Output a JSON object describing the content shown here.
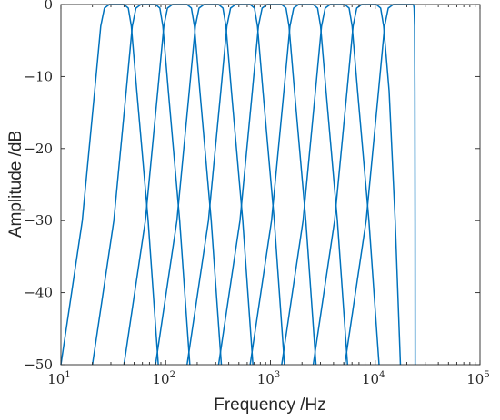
{
  "chart_data": {
    "type": "line",
    "xlabel": "Frequency /Hz",
    "ylabel": "Amplitude /dB",
    "xscale": "log",
    "xlim": [
      10,
      100000
    ],
    "ylim": [
      -50,
      0
    ],
    "grid": false,
    "line_color": "#0072BD",
    "x_ticks": [
      {
        "base": "10",
        "exp": "1",
        "value": 10
      },
      {
        "base": "10",
        "exp": "2",
        "value": 100
      },
      {
        "base": "10",
        "exp": "3",
        "value": 1000
      },
      {
        "base": "10",
        "exp": "4",
        "value": 10000
      },
      {
        "base": "10",
        "exp": "5",
        "value": 100000
      }
    ],
    "y_ticks": [
      {
        "label": "0",
        "value": 0
      },
      {
        "label": "−10",
        "value": -10
      },
      {
        "label": "−20",
        "value": -20
      },
      {
        "label": "−30",
        "value": -30
      },
      {
        "label": "−40",
        "value": -40
      },
      {
        "label": "−50",
        "value": -50
      }
    ],
    "series": [
      {
        "points": [
          [
            10,
            -50
          ],
          [
            16,
            -30
          ],
          [
            21,
            -12
          ],
          [
            24,
            -3
          ],
          [
            26,
            -0.5
          ],
          [
            29,
            0
          ],
          [
            40,
            0
          ],
          [
            44,
            -0.5
          ],
          [
            47,
            -3
          ],
          [
            53,
            -12
          ],
          [
            68,
            -30
          ],
          [
            85,
            -50
          ]
        ]
      },
      {
        "points": [
          [
            20,
            -50
          ],
          [
            32,
            -30
          ],
          [
            42,
            -12
          ],
          [
            48,
            -3
          ],
          [
            52,
            -0.5
          ],
          [
            58,
            0
          ],
          [
            80,
            0
          ],
          [
            88,
            -0.5
          ],
          [
            94,
            -3
          ],
          [
            106,
            -12
          ],
          [
            136,
            -30
          ],
          [
            170,
            -50
          ]
        ]
      },
      {
        "points": [
          [
            40,
            -50
          ],
          [
            64,
            -30
          ],
          [
            84,
            -12
          ],
          [
            96,
            -3
          ],
          [
            104,
            -0.5
          ],
          [
            116,
            0
          ],
          [
            160,
            0
          ],
          [
            176,
            -0.5
          ],
          [
            188,
            -3
          ],
          [
            212,
            -12
          ],
          [
            272,
            -30
          ],
          [
            340,
            -50
          ]
        ]
      },
      {
        "points": [
          [
            80,
            -50
          ],
          [
            128,
            -30
          ],
          [
            168,
            -12
          ],
          [
            192,
            -3
          ],
          [
            208,
            -0.5
          ],
          [
            232,
            0
          ],
          [
            320,
            0
          ],
          [
            352,
            -0.5
          ],
          [
            376,
            -3
          ],
          [
            424,
            -12
          ],
          [
            544,
            -30
          ],
          [
            680,
            -50
          ]
        ]
      },
      {
        "points": [
          [
            160,
            -50
          ],
          [
            256,
            -30
          ],
          [
            336,
            -12
          ],
          [
            384,
            -3
          ],
          [
            416,
            -0.5
          ],
          [
            464,
            0
          ],
          [
            640,
            0
          ],
          [
            704,
            -0.5
          ],
          [
            752,
            -3
          ],
          [
            848,
            -12
          ],
          [
            1088,
            -30
          ],
          [
            1360,
            -50
          ]
        ]
      },
      {
        "points": [
          [
            320,
            -50
          ],
          [
            512,
            -30
          ],
          [
            672,
            -12
          ],
          [
            768,
            -3
          ],
          [
            832,
            -0.5
          ],
          [
            928,
            0
          ],
          [
            1280,
            0
          ],
          [
            1408,
            -0.5
          ],
          [
            1504,
            -3
          ],
          [
            1696,
            -12
          ],
          [
            2176,
            -30
          ],
          [
            2720,
            -50
          ]
        ]
      },
      {
        "points": [
          [
            640,
            -50
          ],
          [
            1024,
            -30
          ],
          [
            1344,
            -12
          ],
          [
            1536,
            -3
          ],
          [
            1664,
            -0.5
          ],
          [
            1856,
            0
          ],
          [
            2560,
            0
          ],
          [
            2816,
            -0.5
          ],
          [
            3008,
            -3
          ],
          [
            3392,
            -12
          ],
          [
            4352,
            -30
          ],
          [
            5440,
            -50
          ]
        ]
      },
      {
        "points": [
          [
            1280,
            -50
          ],
          [
            2048,
            -30
          ],
          [
            2688,
            -12
          ],
          [
            3072,
            -3
          ],
          [
            3328,
            -0.5
          ],
          [
            3712,
            0
          ],
          [
            5120,
            0
          ],
          [
            5632,
            -0.5
          ],
          [
            6016,
            -3
          ],
          [
            6784,
            -12
          ],
          [
            8704,
            -30
          ],
          [
            10880,
            -50
          ]
        ]
      },
      {
        "points": [
          [
            2560,
            -50
          ],
          [
            4096,
            -30
          ],
          [
            5376,
            -12
          ],
          [
            6144,
            -3
          ],
          [
            6656,
            -0.5
          ],
          [
            7424,
            0
          ],
          [
            10240,
            0
          ],
          [
            11264,
            -0.5
          ],
          [
            12032,
            -3
          ],
          [
            13568,
            -12
          ],
          [
            15500,
            -30
          ],
          [
            17400,
            -50
          ]
        ]
      },
      {
        "points": [
          [
            5120,
            -50
          ],
          [
            8192,
            -30
          ],
          [
            10752,
            -12
          ],
          [
            12288,
            -3
          ],
          [
            13312,
            -0.5
          ],
          [
            14848,
            0
          ],
          [
            23200,
            0
          ],
          [
            23500,
            -0.5
          ],
          [
            23750,
            -3
          ],
          [
            23900,
            -12
          ],
          [
            24000,
            -30
          ],
          [
            24050,
            -50
          ]
        ]
      }
    ]
  }
}
